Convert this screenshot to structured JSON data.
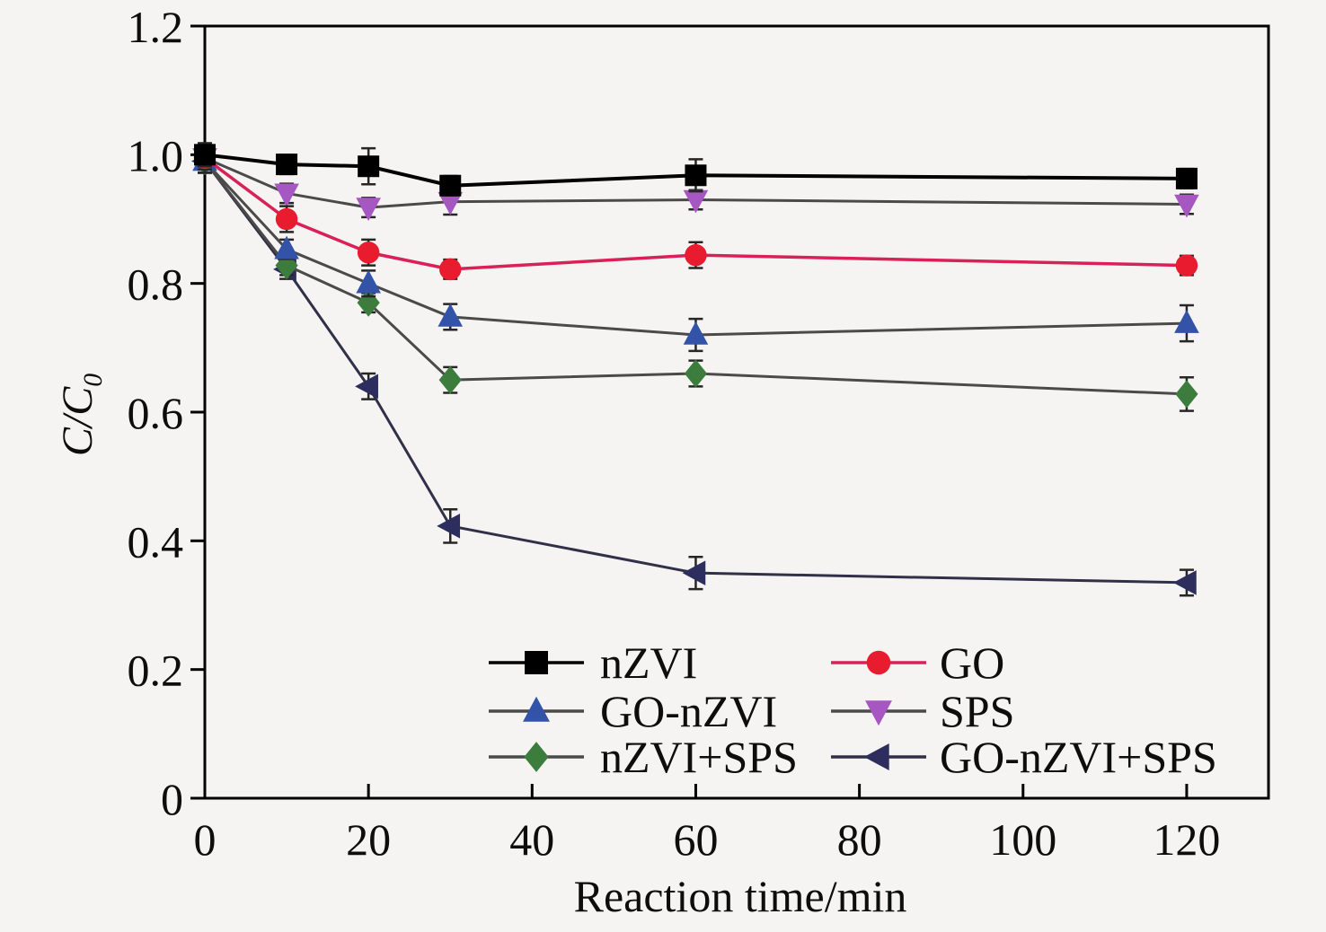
{
  "figure": {
    "xlabel": "Reaction time/min",
    "ylabel_main": "C/C",
    "ylabel_sub": "0",
    "background": "#f5f4f2"
  },
  "chart_data": {
    "type": "line",
    "title": "",
    "xlabel": "Reaction time/min",
    "ylabel": "C/C0",
    "xlim": [
      0,
      130
    ],
    "ylim": [
      0,
      1.2
    ],
    "x_ticks": [
      0,
      20,
      40,
      60,
      80,
      100,
      120
    ],
    "x_tick_labels": [
      "0",
      "20",
      "40",
      "60",
      "80",
      "100",
      "120"
    ],
    "y_ticks": [
      0,
      0.2,
      0.4,
      0.6,
      0.8,
      1.0,
      1.2
    ],
    "y_tick_labels": [
      "0",
      "0.2",
      "0.4",
      "0.6",
      "0.8",
      "1.0",
      "1.2"
    ],
    "grid": false,
    "legend_position": "lower-center-inside",
    "frame_color": "#000000",
    "error_bar_color": "#262626",
    "x": [
      0,
      10,
      20,
      30,
      60,
      120
    ],
    "series": [
      {
        "name": "nZVI",
        "marker": "square",
        "marker_color": "#000000",
        "line_color": "#000000",
        "line_width": 4,
        "values": [
          1.0,
          0.985,
          0.982,
          0.952,
          0.968,
          0.963
        ],
        "errors": [
          0.018,
          0.015,
          0.028,
          0.015,
          0.025,
          0.015
        ]
      },
      {
        "name": "GO",
        "marker": "circle",
        "marker_color": "#e81c2e",
        "line_color": "#d92057",
        "line_width": 3.5,
        "values": [
          0.995,
          0.9,
          0.848,
          0.822,
          0.844,
          0.828
        ],
        "errors": [
          0.018,
          0.02,
          0.02,
          0.015,
          0.02,
          0.015
        ]
      },
      {
        "name": "GO-nZVI",
        "marker": "triangle-up",
        "marker_color": "#3353a8",
        "line_color": "#4a4a4a",
        "line_width": 3,
        "values": [
          0.99,
          0.853,
          0.8,
          0.748,
          0.72,
          0.738
        ],
        "errors": [
          0.018,
          0.015,
          0.02,
          0.02,
          0.025,
          0.028
        ]
      },
      {
        "name": "SPS",
        "marker": "triangle-down",
        "marker_color": "#a757c2",
        "line_color": "#4a4a4a",
        "line_width": 3,
        "values": [
          0.995,
          0.94,
          0.918,
          0.927,
          0.93,
          0.923
        ],
        "errors": [
          0.018,
          0.015,
          0.015,
          0.02,
          0.015,
          0.015
        ]
      },
      {
        "name": "nZVI+SPS",
        "marker": "diamond",
        "marker_color": "#3c7d3e",
        "line_color": "#4a4a4a",
        "line_width": 3,
        "values": [
          0.99,
          0.828,
          0.77,
          0.65,
          0.66,
          0.628
        ],
        "errors": [
          0.018,
          0.015,
          0.015,
          0.02,
          0.02,
          0.026
        ]
      },
      {
        "name": "GO-nZVI+SPS",
        "marker": "triangle-left",
        "marker_color": "#2e2e5e",
        "line_color": "#303048",
        "line_width": 3,
        "values": [
          0.99,
          0.822,
          0.64,
          0.423,
          0.35,
          0.335
        ],
        "errors": [
          0.018,
          0.015,
          0.02,
          0.026,
          0.025,
          0.02
        ]
      }
    ]
  }
}
